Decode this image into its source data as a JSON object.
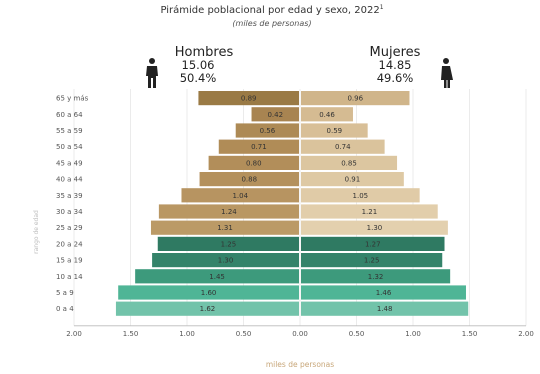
{
  "chart_data": {
    "type": "bar",
    "orientation": "horizontal-population-pyramid",
    "title": "Pirámide poblacional por edad y sexo, 2022",
    "title_sup": "1",
    "subtitle": "(miles de personas)",
    "xlabel": "miles de personas",
    "ylabel": "rango de edad",
    "xlim": [
      -2.0,
      2.0
    ],
    "x_ticks": [
      "2.00",
      "1.50",
      "1.00",
      "0.50",
      "0.00",
      "0.50",
      "1.00",
      "1.50",
      "2.00"
    ],
    "grid": true,
    "categories": [
      "65 y más",
      "60 a 64",
      "55 a 59",
      "50 a 54",
      "45 a 49",
      "40 a 44",
      "35 a 39",
      "30 a 34",
      "25 a 29",
      "20 a 24",
      "15 a 19",
      "10 a 14",
      "5 a 9",
      "0 a 4"
    ],
    "series": [
      {
        "name": "Hombres",
        "total": "15.06",
        "share": "50.4%",
        "values": [
          0.89,
          0.42,
          0.56,
          0.71,
          0.8,
          0.88,
          1.04,
          1.24,
          1.31,
          1.25,
          1.3,
          1.45,
          1.6,
          1.62
        ],
        "labels": [
          "0.89",
          "0.42",
          "0.56",
          "0.71",
          "0.80",
          "0.88",
          "1.04",
          "1.24",
          "1.31",
          "1.25",
          "1.30",
          "1.45",
          "1.60",
          "1.62"
        ]
      },
      {
        "name": "Mujeres",
        "total": "14.85",
        "share": "49.6%",
        "values": [
          0.96,
          0.46,
          0.59,
          0.74,
          0.85,
          0.91,
          1.05,
          1.21,
          1.3,
          1.27,
          1.25,
          1.32,
          1.46,
          1.48
        ],
        "labels": [
          "0.96",
          "0.46",
          "0.59",
          "0.74",
          "0.85",
          "0.91",
          "1.05",
          "1.21",
          "1.30",
          "1.27",
          "1.25",
          "1.32",
          "1.46",
          "1.48"
        ]
      }
    ],
    "colors": {
      "hombres": [
        "#9a7a45",
        "#a88451",
        "#ad8a55",
        "#b08c57",
        "#b28e5a",
        "#b4915d",
        "#b79461",
        "#b99763",
        "#bb9a66",
        "#2f7a62",
        "#34836a",
        "#3d9a7c",
        "#4fb596",
        "#72c3aa"
      ],
      "mujeres": [
        "#d0b58a",
        "#d5bb92",
        "#d8bf97",
        "#dac39c",
        "#dcc6a0",
        "#dec9a4",
        "#e0cba7",
        "#e2ceab",
        "#e3d0ae",
        "#2f7a62",
        "#34836a",
        "#3d9a7c",
        "#4fb596",
        "#72c3aa"
      ]
    },
    "icons": [
      "man-icon",
      "woman-icon"
    ]
  }
}
